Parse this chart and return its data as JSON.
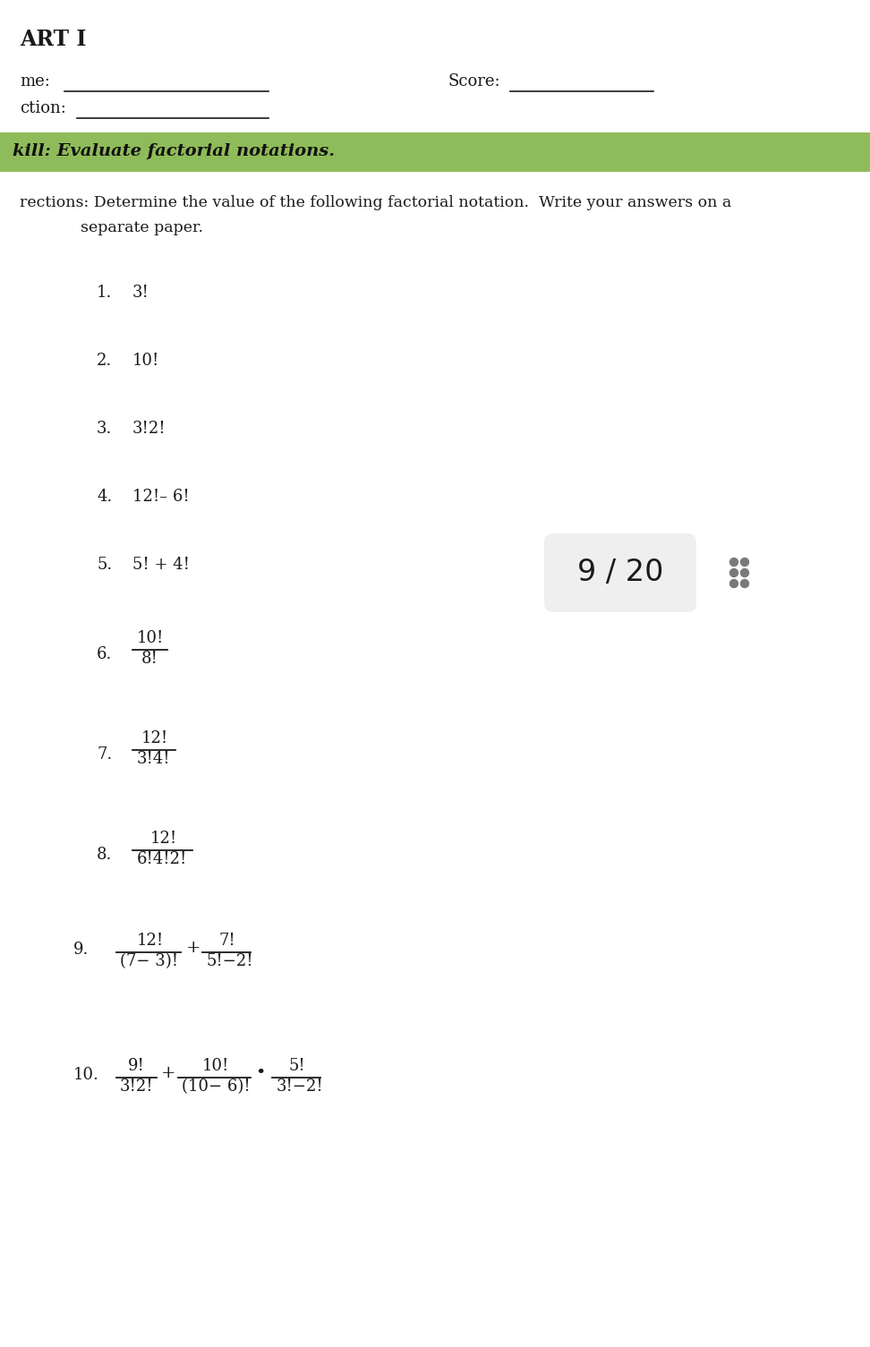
{
  "bg_color": "#ffffff",
  "part_title": "ART I",
  "name_label": "me:",
  "section_label": "ction:",
  "score_label": "Score:",
  "skill_bg": "#8fbc5a",
  "skill_text": "kill: Evaluate factorial notations.",
  "directions_text": "rections: Determine the value of the following factorial notation.  Write your answers on a",
  "directions_text2": "separate paper.",
  "items": [
    {
      "num": "1.",
      "text": "3!"
    },
    {
      "num": "2.",
      "text": "10!"
    },
    {
      "num": "3.",
      "text": "3!2!"
    },
    {
      "num": "4.",
      "text": "12!– 6!"
    },
    {
      "num": "5.",
      "text": "5! + 4!"
    }
  ],
  "fraction_items": [
    {
      "num": "6.",
      "numerator": "10!",
      "denominator": "8!"
    },
    {
      "num": "7.",
      "numerator": "12!",
      "denominator": "3!4!"
    },
    {
      "num": "8.",
      "numerator": "12!",
      "denominator": "6!4!2!"
    }
  ],
  "complex_items": [
    {
      "num": "9.",
      "parts": [
        {
          "numerator": "12!",
          "denominator": "(7− 3)!",
          "suffix": "+"
        },
        {
          "numerator": "7!",
          "denominator": "5!−2!",
          "suffix": ""
        }
      ]
    },
    {
      "num": "10.",
      "parts": [
        {
          "numerator": "9!",
          "denominator": "3!2!",
          "suffix": "+"
        },
        {
          "numerator": "10!",
          "denominator": "(10− 6)!",
          "suffix": "•"
        },
        {
          "numerator": "5!",
          "denominator": "3!−2!",
          "suffix": ""
        }
      ]
    }
  ],
  "score_badge": "9 / 20",
  "font_color": "#1a1a1a"
}
